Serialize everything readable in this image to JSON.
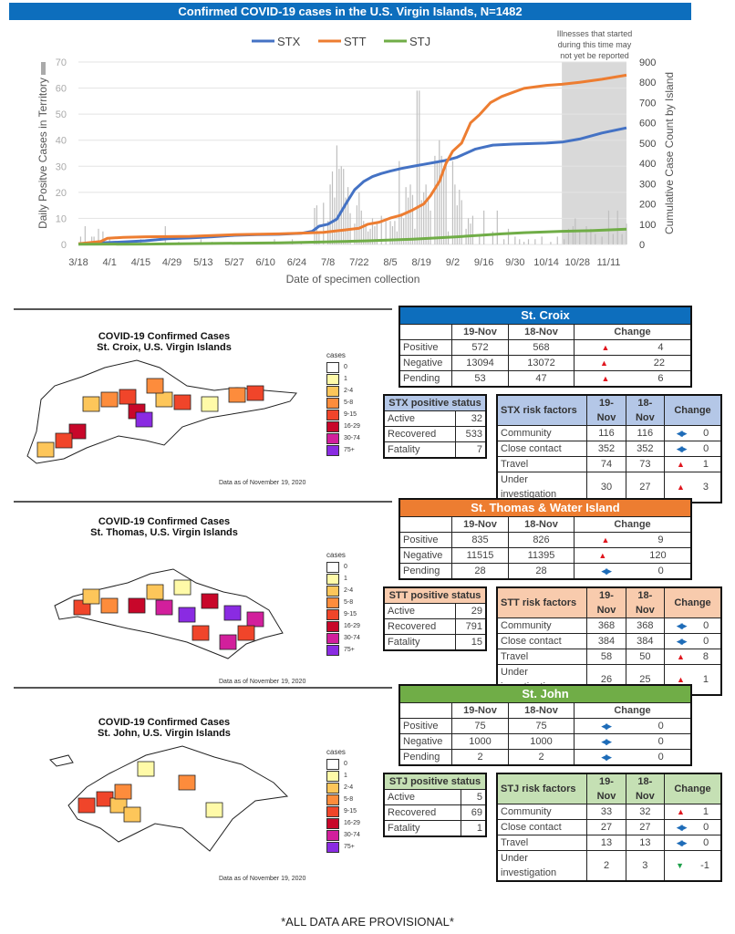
{
  "banner": "Confirmed COVID-19 cases in the U.S. Virgin Islands, N=1482",
  "chart_data": {
    "type": "line",
    "title": "Confirmed COVID-19 cases in the U.S. Virgin Islands, N=1482",
    "xlabel": "Date of specimen collection",
    "ylabel_left": "Daily Positve Cases in Territory",
    "ylabel_right": "Cumulative Case Count by Island",
    "ylim_left": [
      0,
      70
    ],
    "ylim_right": [
      0,
      900
    ],
    "yticks_left": [
      0,
      10,
      20,
      30,
      40,
      50,
      60,
      70
    ],
    "yticks_right": [
      0,
      100,
      200,
      300,
      400,
      500,
      600,
      700,
      800,
      900
    ],
    "xticks": [
      "3/18",
      "4/1",
      "4/15",
      "4/29",
      "5/13",
      "5/27",
      "6/10",
      "6/24",
      "7/8",
      "7/22",
      "8/5",
      "8/19",
      "9/2",
      "9/16",
      "9/30",
      "10/14",
      "10/28",
      "11/11"
    ],
    "grid": true,
    "legend_position": "top-center",
    "shaded_annotation": "Illnesses that started during this time may not yet be reported",
    "shaded_range_days": [
      217,
      246
    ],
    "day_range": [
      0,
      246
    ],
    "series": [
      {
        "name": "STX",
        "color": "#4472c4",
        "axis": "right",
        "points": [
          [
            0,
            2
          ],
          [
            10,
            8
          ],
          [
            20,
            12
          ],
          [
            30,
            18
          ],
          [
            40,
            28
          ],
          [
            50,
            32
          ],
          [
            60,
            38
          ],
          [
            70,
            45
          ],
          [
            80,
            48
          ],
          [
            90,
            50
          ],
          [
            100,
            55
          ],
          [
            105,
            65
          ],
          [
            108,
            90
          ],
          [
            112,
            100
          ],
          [
            116,
            125
          ],
          [
            120,
            200
          ],
          [
            124,
            270
          ],
          [
            128,
            310
          ],
          [
            132,
            335
          ],
          [
            136,
            350
          ],
          [
            140,
            362
          ],
          [
            145,
            375
          ],
          [
            150,
            385
          ],
          [
            155,
            395
          ],
          [
            160,
            405
          ],
          [
            165,
            415
          ],
          [
            170,
            430
          ],
          [
            174,
            450
          ],
          [
            178,
            470
          ],
          [
            182,
            480
          ],
          [
            186,
            490
          ],
          [
            195,
            495
          ],
          [
            210,
            500
          ],
          [
            217,
            505
          ],
          [
            225,
            520
          ],
          [
            235,
            550
          ],
          [
            246,
            575
          ]
        ]
      },
      {
        "name": "STT",
        "color": "#ed7d31",
        "axis": "right",
        "points": [
          [
            0,
            3
          ],
          [
            10,
            15
          ],
          [
            13,
            30
          ],
          [
            20,
            35
          ],
          [
            30,
            38
          ],
          [
            50,
            40
          ],
          [
            70,
            48
          ],
          [
            90,
            52
          ],
          [
            100,
            56
          ],
          [
            110,
            60
          ],
          [
            120,
            72
          ],
          [
            126,
            80
          ],
          [
            130,
            100
          ],
          [
            135,
            110
          ],
          [
            140,
            130
          ],
          [
            145,
            145
          ],
          [
            150,
            170
          ],
          [
            155,
            200
          ],
          [
            158,
            240
          ],
          [
            162,
            310
          ],
          [
            165,
            400
          ],
          [
            168,
            460
          ],
          [
            172,
            500
          ],
          [
            176,
            600
          ],
          [
            180,
            640
          ],
          [
            185,
            700
          ],
          [
            190,
            730
          ],
          [
            195,
            750
          ],
          [
            200,
            770
          ],
          [
            210,
            785
          ],
          [
            217,
            790
          ],
          [
            225,
            800
          ],
          [
            235,
            815
          ],
          [
            246,
            835
          ]
        ]
      },
      {
        "name": "STJ",
        "color": "#70ad47",
        "axis": "right",
        "points": [
          [
            0,
            1
          ],
          [
            30,
            2
          ],
          [
            60,
            5
          ],
          [
            90,
            8
          ],
          [
            110,
            12
          ],
          [
            130,
            18
          ],
          [
            150,
            26
          ],
          [
            170,
            38
          ],
          [
            180,
            45
          ],
          [
            190,
            52
          ],
          [
            200,
            58
          ],
          [
            210,
            62
          ],
          [
            217,
            65
          ],
          [
            230,
            68
          ],
          [
            246,
            75
          ]
        ]
      }
    ],
    "daily_bars_axis": "left",
    "daily_bar_color": "#bfbfbf",
    "daily_bars": [
      [
        1,
        3
      ],
      [
        3,
        7
      ],
      [
        6,
        3
      ],
      [
        7,
        3
      ],
      [
        9,
        6
      ],
      [
        11,
        5
      ],
      [
        14,
        2
      ],
      [
        20,
        1
      ],
      [
        28,
        2
      ],
      [
        39,
        7
      ],
      [
        45,
        1
      ],
      [
        55,
        2
      ],
      [
        60,
        1
      ],
      [
        70,
        1
      ],
      [
        80,
        1
      ],
      [
        88,
        2
      ],
      [
        96,
        2
      ],
      [
        100,
        1
      ],
      [
        106,
        14
      ],
      [
        107,
        15
      ],
      [
        108,
        4
      ],
      [
        110,
        16
      ],
      [
        112,
        9
      ],
      [
        113,
        23
      ],
      [
        114,
        28
      ],
      [
        115,
        18
      ],
      [
        116,
        38
      ],
      [
        117,
        29
      ],
      [
        118,
        30
      ],
      [
        119,
        29
      ],
      [
        120,
        18
      ],
      [
        121,
        22
      ],
      [
        122,
        12
      ],
      [
        124,
        8
      ],
      [
        125,
        15
      ],
      [
        126,
        20
      ],
      [
        127,
        13
      ],
      [
        128,
        9
      ],
      [
        129,
        8
      ],
      [
        130,
        5
      ],
      [
        131,
        6
      ],
      [
        132,
        10
      ],
      [
        133,
        7
      ],
      [
        134,
        8
      ],
      [
        136,
        11
      ],
      [
        138,
        9
      ],
      [
        140,
        9
      ],
      [
        141,
        7
      ],
      [
        142,
        9
      ],
      [
        143,
        5
      ],
      [
        144,
        32
      ],
      [
        145,
        12
      ],
      [
        146,
        10
      ],
      [
        147,
        22
      ],
      [
        148,
        18
      ],
      [
        149,
        23
      ],
      [
        150,
        19
      ],
      [
        151,
        6
      ],
      [
        152,
        59
      ],
      [
        153,
        59
      ],
      [
        154,
        17
      ],
      [
        155,
        20
      ],
      [
        156,
        23
      ],
      [
        157,
        18
      ],
      [
        158,
        13
      ],
      [
        160,
        34
      ],
      [
        161,
        32
      ],
      [
        162,
        40
      ],
      [
        163,
        34
      ],
      [
        164,
        30
      ],
      [
        165,
        33
      ],
      [
        166,
        5
      ],
      [
        168,
        32
      ],
      [
        169,
        23
      ],
      [
        170,
        15
      ],
      [
        171,
        21
      ],
      [
        172,
        17
      ],
      [
        174,
        6
      ],
      [
        175,
        10
      ],
      [
        176,
        8
      ],
      [
        177,
        11
      ],
      [
        180,
        4
      ],
      [
        182,
        13
      ],
      [
        186,
        5
      ],
      [
        188,
        13
      ],
      [
        191,
        2
      ],
      [
        193,
        6
      ],
      [
        196,
        3
      ],
      [
        198,
        2
      ],
      [
        200,
        1
      ],
      [
        202,
        2
      ],
      [
        205,
        2
      ],
      [
        208,
        3
      ],
      [
        212,
        1
      ],
      [
        215,
        3
      ],
      [
        218,
        2
      ],
      [
        220,
        6
      ],
      [
        222,
        7
      ],
      [
        223,
        10
      ],
      [
        225,
        5
      ],
      [
        228,
        7
      ],
      [
        230,
        6
      ],
      [
        232,
        4
      ],
      [
        235,
        3
      ],
      [
        238,
        13
      ],
      [
        240,
        4
      ],
      [
        242,
        13
      ],
      [
        244,
        4
      ],
      [
        246,
        8
      ]
    ]
  },
  "sections": [
    {
      "key": "stx",
      "color": "#0d6ebd",
      "status_color": "#b4c7e7",
      "map": {
        "title_line1": "COVID-19 Confirmed Cases",
        "title_line2": "St. Croix, U.S. Virgin Islands",
        "as_of": "Data as of November 19, 2020"
      },
      "summary": {
        "title": "St. Croix",
        "col1": "19-Nov",
        "col2": "18-Nov",
        "col3": "Change",
        "rows": [
          {
            "label": "Positive",
            "v1": "572",
            "v2": "568",
            "dir": "up",
            "change": "4"
          },
          {
            "label": "Negative",
            "v1": "13094",
            "v2": "13072",
            "dir": "up",
            "change": "22"
          },
          {
            "label": "Pending",
            "v1": "53",
            "v2": "47",
            "dir": "up",
            "change": "6"
          }
        ]
      },
      "status": {
        "title": "STX positive status",
        "rows": [
          {
            "label": "Active",
            "value": "32"
          },
          {
            "label": "Recovered",
            "value": "533"
          },
          {
            "label": "Fatality",
            "value": "7"
          }
        ]
      },
      "risk": {
        "title": "STX risk factors",
        "col1": "19-Nov",
        "col2": "18-Nov",
        "col3": "Change",
        "rows": [
          {
            "label": "Community",
            "v1": "116",
            "v2": "116",
            "dir": "eq",
            "change": "0"
          },
          {
            "label": "Close contact",
            "v1": "352",
            "v2": "352",
            "dir": "eq",
            "change": "0"
          },
          {
            "label": "Travel",
            "v1": "74",
            "v2": "73",
            "dir": "up",
            "change": "1"
          },
          {
            "label": "Under investigation",
            "v1": "30",
            "v2": "27",
            "dir": "up",
            "change": "3"
          }
        ]
      }
    },
    {
      "key": "stt",
      "color": "#ed7d31",
      "status_color": "#f8cbad",
      "map": {
        "title_line1": "COVID-19 Confirmed Cases",
        "title_line2": "St. Thomas, U.S. Virgin Islands",
        "as_of": "Data as of November 19, 2020"
      },
      "summary": {
        "title": "St. Thomas & Water Island",
        "col1": "19-Nov",
        "col2": "18-Nov",
        "col3": "Change",
        "rows": [
          {
            "label": "Positive",
            "v1": "835",
            "v2": "826",
            "dir": "up",
            "change": "9"
          },
          {
            "label": "Negative",
            "v1": "11515",
            "v2": "11395",
            "dir": "up",
            "change": "120"
          },
          {
            "label": "Pending",
            "v1": "28",
            "v2": "28",
            "dir": "eq",
            "change": "0"
          }
        ]
      },
      "status": {
        "title": "STT positive status",
        "rows": [
          {
            "label": "Active",
            "value": "29"
          },
          {
            "label": "Recovered",
            "value": "791"
          },
          {
            "label": "Fatality",
            "value": "15"
          }
        ]
      },
      "risk": {
        "title": "STT risk factors",
        "col1": "19-Nov",
        "col2": "18-Nov",
        "col3": "Change",
        "rows": [
          {
            "label": "Community",
            "v1": "368",
            "v2": "368",
            "dir": "eq",
            "change": "0"
          },
          {
            "label": "Close contact",
            "v1": "384",
            "v2": "384",
            "dir": "eq",
            "change": "0"
          },
          {
            "label": "Travel",
            "v1": "58",
            "v2": "50",
            "dir": "up",
            "change": "8"
          },
          {
            "label": "Under investigation",
            "v1": "26",
            "v2": "25",
            "dir": "up",
            "change": "1"
          }
        ]
      }
    },
    {
      "key": "stj",
      "color": "#70ad47",
      "status_color": "#c5e0b4",
      "map": {
        "title_line1": "COVID-19 Confirmed Cases",
        "title_line2": "St. John, U.S. Virgin Islands",
        "as_of": "Data as of November 19, 2020"
      },
      "summary": {
        "title": "St. John",
        "col1": "19-Nov",
        "col2": "18-Nov",
        "col3": "Change",
        "rows": [
          {
            "label": "Positive",
            "v1": "75",
            "v2": "75",
            "dir": "eq",
            "change": "0"
          },
          {
            "label": "Negative",
            "v1": "1000",
            "v2": "1000",
            "dir": "eq",
            "change": "0"
          },
          {
            "label": "Pending",
            "v1": "2",
            "v2": "2",
            "dir": "eq",
            "change": "0"
          }
        ]
      },
      "status": {
        "title": "STJ positive status",
        "rows": [
          {
            "label": "Active",
            "value": "5"
          },
          {
            "label": "Recovered",
            "value": "69"
          },
          {
            "label": "Fatality",
            "value": "1"
          }
        ]
      },
      "risk": {
        "title": "STJ risk factors",
        "col1": "19-Nov",
        "col2": "18-Nov",
        "col3": "Change",
        "rows": [
          {
            "label": "Community",
            "v1": "33",
            "v2": "32",
            "dir": "up",
            "change": "1"
          },
          {
            "label": "Close contact",
            "v1": "27",
            "v2": "27",
            "dir": "eq",
            "change": "0"
          },
          {
            "label": "Travel",
            "v1": "13",
            "v2": "13",
            "dir": "eq",
            "change": "0"
          },
          {
            "label": "Under investigation",
            "v1": "2",
            "v2": "3",
            "dir": "down",
            "change": "-1"
          }
        ]
      }
    }
  ],
  "map_legend": {
    "title": "cases",
    "bins": [
      {
        "label": "0",
        "color": "#ffffff"
      },
      {
        "label": "1",
        "color": "#fffaa8"
      },
      {
        "label": "2-4",
        "color": "#fdc65a"
      },
      {
        "label": "5-8",
        "color": "#fd8c3c"
      },
      {
        "label": "9-15",
        "color": "#f0452a"
      },
      {
        "label": "16-29",
        "color": "#c8072a"
      },
      {
        "label": "30-74",
        "color": "#d21f9c"
      },
      {
        "label": "75+",
        "color": "#8a2be2"
      }
    ]
  },
  "direction_glyphs": {
    "up": "▲",
    "down": "▼",
    "eq": "◀▶"
  },
  "footer": "*ALL DATA ARE PROVISIONAL*"
}
